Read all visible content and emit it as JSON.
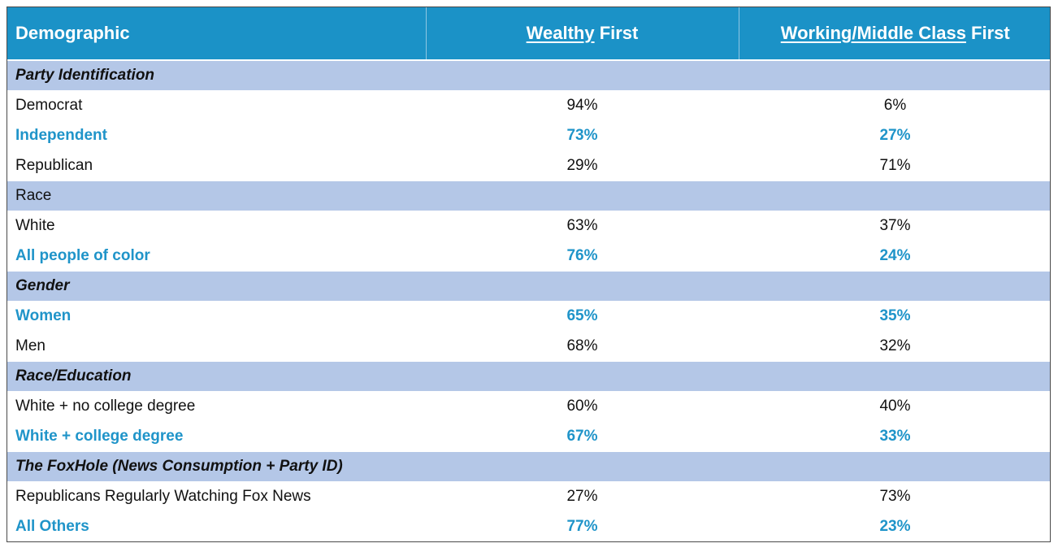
{
  "header": {
    "demographic": "Demographic",
    "wealthy_underlined": "Wealthy",
    "wealthy_rest": " First",
    "working_underlined": "Working/Middle Class",
    "working_rest": " First"
  },
  "groups": [
    {
      "title": "Party Identification",
      "title_style": "italic",
      "rows": [
        {
          "label": "Democrat",
          "wealthy": "94%",
          "working": "6%",
          "highlight": false
        },
        {
          "label": "Independent",
          "wealthy": "73%",
          "working": "27%",
          "highlight": true
        },
        {
          "label": "Republican",
          "wealthy": "29%",
          "working": "71%",
          "highlight": false
        }
      ]
    },
    {
      "title": "Race",
      "title_style": "plain",
      "rows": [
        {
          "label": "White",
          "wealthy": "63%",
          "working": "37%",
          "highlight": false
        },
        {
          "label": "All people of color",
          "wealthy": "76%",
          "working": "24%",
          "highlight": true
        }
      ]
    },
    {
      "title": "Gender",
      "title_style": "italic",
      "rows": [
        {
          "label": "Women",
          "wealthy": "65%",
          "working": "35%",
          "highlight": true
        },
        {
          "label": "Men",
          "wealthy": "68%",
          "working": "32%",
          "highlight": false
        }
      ]
    },
    {
      "title": "Race/Education",
      "title_style": "italic",
      "rows": [
        {
          "label": "White + no college degree",
          "wealthy": "60%",
          "working": "40%",
          "highlight": false
        },
        {
          "label": "White + college degree",
          "wealthy": "67%",
          "working": "33%",
          "highlight": true
        }
      ]
    },
    {
      "title": "The FoxHole (News Consumption + Party ID)",
      "title_style": "italic",
      "rows": [
        {
          "label": "Republicans Regularly Watching Fox News",
          "wealthy": "27%",
          "working": "73%",
          "highlight": false
        },
        {
          "label": "All Others",
          "wealthy": "77%",
          "working": "23%",
          "highlight": true
        }
      ]
    }
  ],
  "colors": {
    "header_bg": "#1b92c7",
    "section_bg": "#b4c7e7",
    "highlight_text": "#1f94c9"
  }
}
